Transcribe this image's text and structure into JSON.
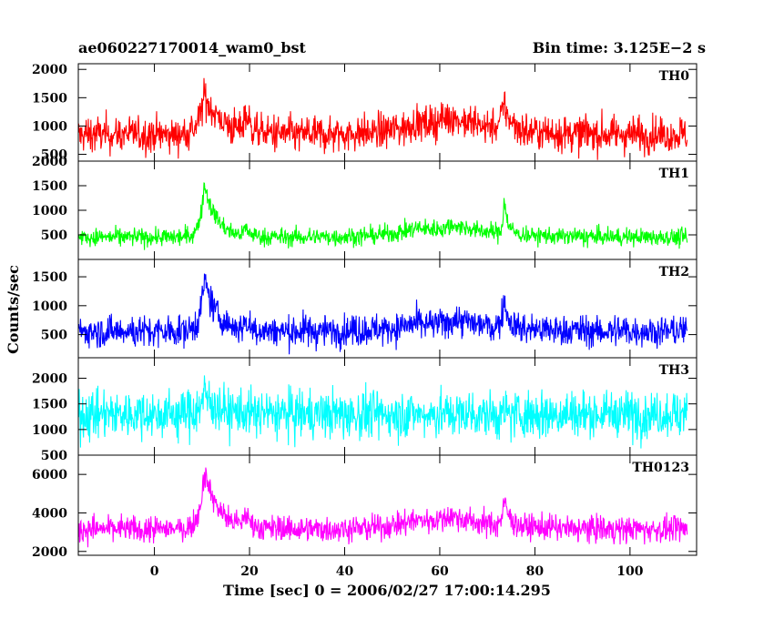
{
  "chart_data": {
    "type": "line",
    "title": "ae060227170014_wam0_bst",
    "subtitle": "Bin time: 3.125E−2 s",
    "xlabel": "Time [sec] 0 = 2006/02/27 17:00:14.295",
    "ylabel": "Counts/sec",
    "xlim": [
      -16,
      114
    ],
    "x_ticks": [
      0,
      20,
      40,
      60,
      80,
      100
    ],
    "grid": false,
    "data_x_range": [
      -16,
      112
    ],
    "panels": [
      {
        "name": "TH0",
        "color": "#ff0000",
        "ylim": [
          380,
          2100
        ],
        "y_ticks": [
          500,
          1000,
          1500,
          2000
        ],
        "baseline": 850,
        "noise": 260,
        "features": [
          {
            "t": 10.5,
            "amp": 700,
            "rise": 1.2,
            "decay": 3.5
          },
          {
            "t": 19,
            "amp": 350,
            "rise": 0.4,
            "decay": 1.2
          },
          {
            "t": 55,
            "amp": 180,
            "rise": 6,
            "decay": 10
          },
          {
            "t": 62,
            "amp": 250,
            "rise": 3,
            "decay": 8
          },
          {
            "t": 73.5,
            "amp": 450,
            "rise": 0.8,
            "decay": 1.5
          }
        ]
      },
      {
        "name": "TH1",
        "color": "#00ff00",
        "ylim": [
          0,
          2000
        ],
        "y_ticks": [
          500,
          1000,
          1500,
          2000
        ],
        "baseline": 450,
        "noise": 150,
        "features": [
          {
            "t": 10.5,
            "amp": 1100,
            "rise": 0.9,
            "decay": 2.5
          },
          {
            "t": 19,
            "amp": 150,
            "rise": 0.4,
            "decay": 1.2
          },
          {
            "t": 55,
            "amp": 180,
            "rise": 6,
            "decay": 10
          },
          {
            "t": 63,
            "amp": 180,
            "rise": 3,
            "decay": 8
          },
          {
            "t": 73.5,
            "amp": 700,
            "rise": 0.3,
            "decay": 0.8
          }
        ]
      },
      {
        "name": "TH2",
        "color": "#0000ff",
        "ylim": [
          100,
          1800
        ],
        "y_ticks": [
          500,
          1000,
          1500
        ],
        "baseline": 560,
        "noise": 220,
        "features": [
          {
            "t": 10.5,
            "amp": 900,
            "rise": 0.9,
            "decay": 2.5
          },
          {
            "t": 19,
            "amp": 150,
            "rise": 0.4,
            "decay": 1.2
          },
          {
            "t": 55,
            "amp": 120,
            "rise": 6,
            "decay": 10
          },
          {
            "t": 63,
            "amp": 150,
            "rise": 3,
            "decay": 8
          },
          {
            "t": 73.5,
            "amp": 500,
            "rise": 0.5,
            "decay": 1.0
          }
        ]
      },
      {
        "name": "TH3",
        "color": "#00ffff",
        "ylim": [
          500,
          2400
        ],
        "y_ticks": [
          500,
          1000,
          1500,
          2000
        ],
        "baseline": 1300,
        "noise": 380,
        "features": [
          {
            "t": 10.5,
            "amp": 400,
            "rise": 1.0,
            "decay": 2.5
          }
        ]
      },
      {
        "name": "TH0123",
        "color": "#ff00ff",
        "ylim": [
          1800,
          7000
        ],
        "y_ticks": [
          2000,
          4000,
          6000
        ],
        "baseline": 3150,
        "noise": 550,
        "features": [
          {
            "t": 10.5,
            "amp": 3000,
            "rise": 1.0,
            "decay": 3.0
          },
          {
            "t": 19,
            "amp": 700,
            "rise": 0.4,
            "decay": 1.2
          },
          {
            "t": 55,
            "amp": 450,
            "rise": 6,
            "decay": 10
          },
          {
            "t": 62,
            "amp": 500,
            "rise": 3,
            "decay": 8
          },
          {
            "t": 73.5,
            "amp": 1300,
            "rise": 0.5,
            "decay": 1.2
          }
        ]
      }
    ]
  }
}
